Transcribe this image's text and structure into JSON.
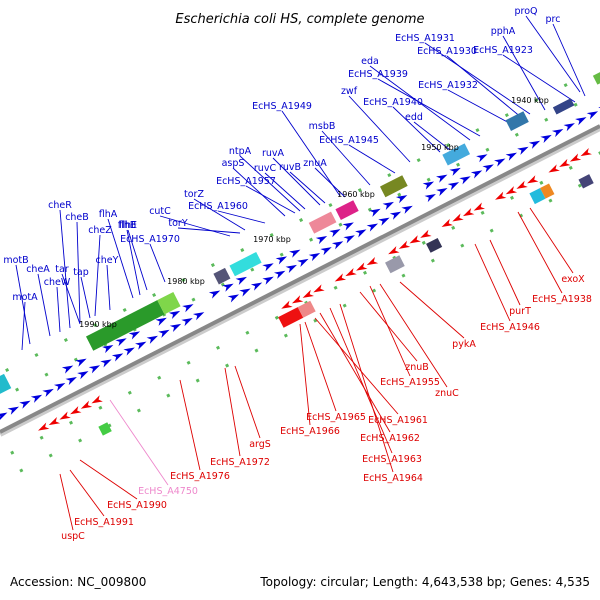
{
  "title": "Escherichia coli HS, complete genome",
  "footer": {
    "accession": "Accession: NC_009800",
    "summary": "Topology: circular; Length: 4,643,538 bp; Genes: 4,535"
  },
  "colors": {
    "forward_label": "#0000cc",
    "reverse_label": "#dd0000",
    "pseudo_label": "#ee88cc",
    "forward_gene": "#0000dd",
    "reverse_gene": "#ee0000",
    "backbone": "#888888"
  },
  "kbp_ticks": [
    "1940 kbp",
    "1950 kbp",
    "1960 kbp",
    "1970 kbp",
    "1980 kbp",
    "1990 kbp"
  ],
  "forward_labels": [
    "proQ",
    "prc",
    "pphA",
    "EcHS_A1931",
    "EcHS_A1930",
    "EcHS_A1923",
    "eda",
    "EcHS_A1939",
    "EcHS_A1932",
    "zwf",
    "EcHS_A1940",
    "EcHS_A1949",
    "edd",
    "msbB",
    "EcHS_A1945",
    "ruvA",
    "ntpA",
    "ruvC",
    "ruvB",
    "znuA",
    "aspS",
    "EcHS_A1957",
    "torZ",
    "EcHS_A1960",
    "cutC",
    "torY",
    "cheR",
    "flhA",
    "cheB",
    "flhB",
    "cheZ",
    "flhE",
    "cheY",
    "EcHS_A1970",
    "motB",
    "tar",
    "cheA",
    "tap",
    "cheW",
    "motA"
  ],
  "reverse_labels": [
    "exoX",
    "EcHS_A1938",
    "purT",
    "EcHS_A1946",
    "pykA",
    "znuB",
    "EcHS_A1955",
    "znuC",
    "EcHS_A1961",
    "EcHS_A1965",
    "EcHS_A1962",
    "EcHS_A1966",
    "EcHS_A1963",
    "EcHS_A1964",
    "argS",
    "EcHS_A1972",
    "EcHS_A1976",
    "EcHS_A1990",
    "EcHS_A1991",
    "uspC"
  ],
  "pseudo_labels": [
    "EcHS_A4750"
  ]
}
